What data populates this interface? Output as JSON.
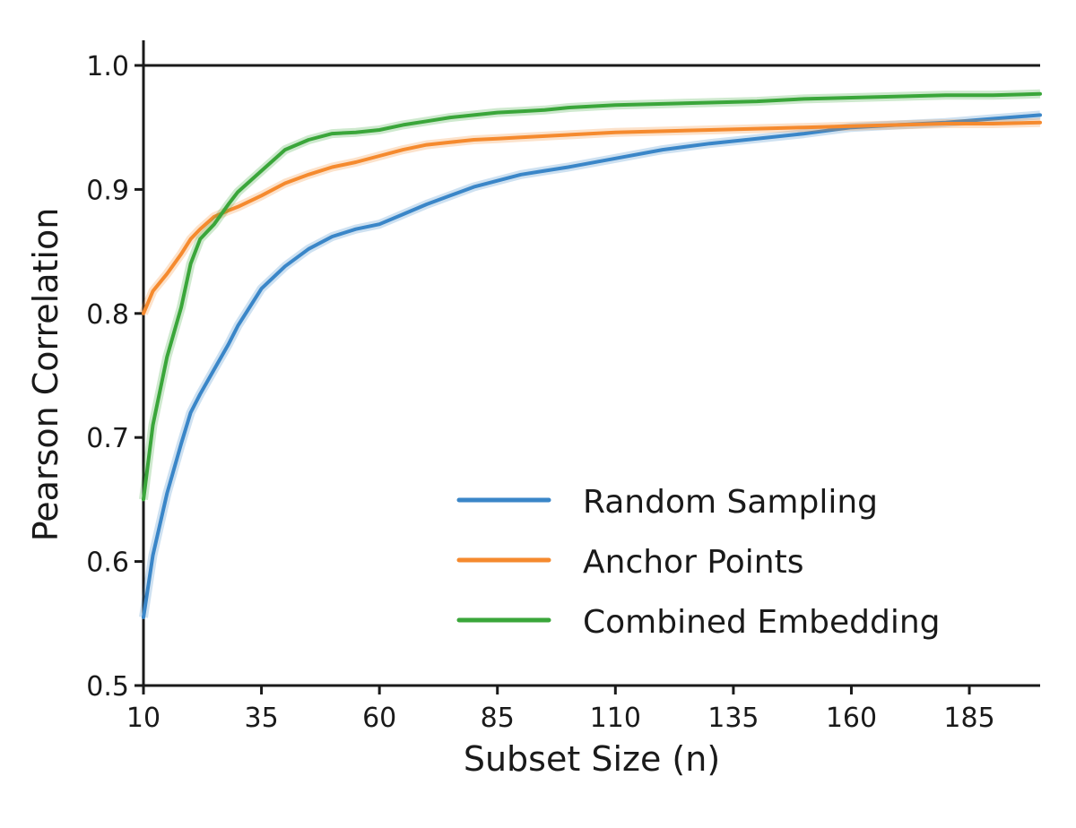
{
  "chart_data": {
    "type": "line",
    "title": "",
    "xlabel": "Subset Size (n)",
    "ylabel": "Pearson Correlation",
    "xlim": [
      10,
      200
    ],
    "ylim": [
      0.5,
      1.0
    ],
    "xticks": [
      10,
      35,
      60,
      85,
      110,
      135,
      160,
      185
    ],
    "xtick_labels": [
      "10",
      "35",
      "60",
      "85",
      "110",
      "135",
      "160",
      "185"
    ],
    "yticks": [
      0.5,
      0.6,
      0.7,
      0.8,
      0.9,
      1.0
    ],
    "ytick_labels": [
      "0.5",
      "0.6",
      "0.7",
      "0.8",
      "0.9",
      "1.0"
    ],
    "grid": false,
    "legend_position": "lower-right",
    "x": [
      10,
      12,
      15,
      18,
      20,
      22,
      25,
      28,
      30,
      35,
      40,
      45,
      50,
      55,
      60,
      65,
      70,
      75,
      80,
      85,
      90,
      95,
      100,
      110,
      120,
      130,
      140,
      150,
      160,
      170,
      180,
      190,
      200
    ],
    "series": [
      {
        "name": "Random Sampling",
        "color": "#3a86c8",
        "values": [
          0.555,
          0.605,
          0.655,
          0.695,
          0.72,
          0.735,
          0.755,
          0.775,
          0.79,
          0.82,
          0.838,
          0.852,
          0.862,
          0.868,
          0.872,
          0.88,
          0.888,
          0.895,
          0.902,
          0.907,
          0.912,
          0.915,
          0.918,
          0.925,
          0.932,
          0.937,
          0.941,
          0.945,
          0.95,
          0.952,
          0.954,
          0.957,
          0.96
        ]
      },
      {
        "name": "Anchor Points",
        "color": "#f58a2e",
        "values": [
          0.8,
          0.818,
          0.832,
          0.848,
          0.86,
          0.868,
          0.878,
          0.883,
          0.886,
          0.895,
          0.905,
          0.912,
          0.918,
          0.922,
          0.927,
          0.932,
          0.936,
          0.938,
          0.94,
          0.941,
          0.942,
          0.943,
          0.944,
          0.946,
          0.947,
          0.948,
          0.949,
          0.95,
          0.951,
          0.952,
          0.953,
          0.953,
          0.954
        ]
      },
      {
        "name": "Combined Embedding",
        "color": "#3aa63a",
        "values": [
          0.65,
          0.71,
          0.765,
          0.805,
          0.84,
          0.86,
          0.872,
          0.888,
          0.898,
          0.915,
          0.932,
          0.94,
          0.945,
          0.946,
          0.948,
          0.952,
          0.955,
          0.958,
          0.96,
          0.962,
          0.963,
          0.964,
          0.966,
          0.968,
          0.969,
          0.97,
          0.971,
          0.973,
          0.974,
          0.975,
          0.976,
          0.976,
          0.977
        ]
      }
    ]
  }
}
